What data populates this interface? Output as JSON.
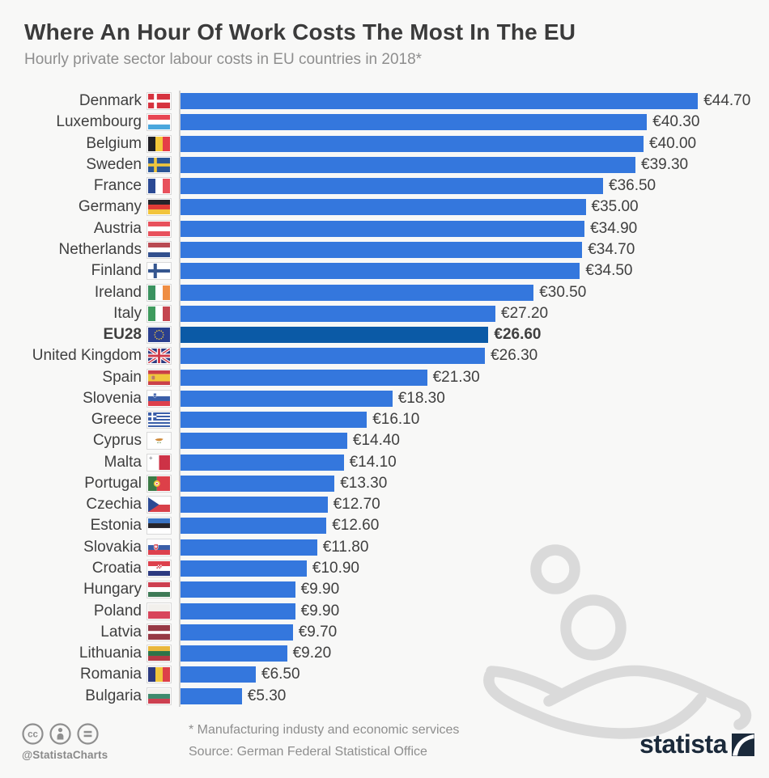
{
  "header": {
    "title": "Where An Hour Of Work Costs The Most In The EU",
    "subtitle": "Hourly private sector labour costs in EU countries in 2018*"
  },
  "chart_data": {
    "type": "bar",
    "orientation": "horizontal",
    "title": "Where An Hour Of Work Costs The Most In The EU",
    "subtitle": "Hourly private sector labour costs in EU countries in 2018*",
    "unit": "EUR per hour",
    "value_prefix": "€",
    "xlim": [
      0,
      46
    ],
    "grid": false,
    "legend": "none",
    "bar_color": "#3477dd",
    "highlight_color": "#0b5aa6",
    "highlight_category": "EU28",
    "categories": [
      "Denmark",
      "Luxembourg",
      "Belgium",
      "Sweden",
      "France",
      "Germany",
      "Austria",
      "Netherlands",
      "Finland",
      "Ireland",
      "Italy",
      "EU28",
      "United Kingdom",
      "Spain",
      "Slovenia",
      "Greece",
      "Cyprus",
      "Malta",
      "Portugal",
      "Czechia",
      "Estonia",
      "Slovakia",
      "Croatia",
      "Hungary",
      "Poland",
      "Latvia",
      "Lithuania",
      "Romania",
      "Bulgaria"
    ],
    "values": [
      44.7,
      40.3,
      40.0,
      39.3,
      36.5,
      35.0,
      34.9,
      34.7,
      34.5,
      30.5,
      27.2,
      26.6,
      26.3,
      21.3,
      18.3,
      16.1,
      14.4,
      14.1,
      13.3,
      12.7,
      12.6,
      11.8,
      10.9,
      9.9,
      9.9,
      9.7,
      9.2,
      6.5,
      5.3
    ],
    "value_labels": [
      "€44.70",
      "€40.30",
      "€40.00",
      "€39.30",
      "€36.50",
      "€35.00",
      "€34.90",
      "€34.70",
      "€34.50",
      "€30.50",
      "€27.20",
      "€26.60",
      "€26.30",
      "€21.30",
      "€18.30",
      "€16.10",
      "€14.40",
      "€14.10",
      "€13.30",
      "€12.70",
      "€12.60",
      "€11.80",
      "€10.90",
      "€9.90",
      "€9.90",
      "€9.70",
      "€9.20",
      "€6.50",
      "€5.30"
    ],
    "flag_icons": [
      "flag-denmark-icon",
      "flag-luxembourg-icon",
      "flag-belgium-icon",
      "flag-sweden-icon",
      "flag-france-icon",
      "flag-germany-icon",
      "flag-austria-icon",
      "flag-netherlands-icon",
      "flag-finland-icon",
      "flag-ireland-icon",
      "flag-italy-icon",
      "flag-eu-icon",
      "flag-united-kingdom-icon",
      "flag-spain-icon",
      "flag-slovenia-icon",
      "flag-greece-icon",
      "flag-cyprus-icon",
      "flag-malta-icon",
      "flag-portugal-icon",
      "flag-czechia-icon",
      "flag-estonia-icon",
      "flag-slovakia-icon",
      "flag-croatia-icon",
      "flag-hungary-icon",
      "flag-poland-icon",
      "flag-latvia-icon",
      "flag-lithuania-icon",
      "flag-romania-icon",
      "flag-bulgaria-icon"
    ]
  },
  "watermark": {
    "icon": "hand-giving-person-icon",
    "color": "#dadada"
  },
  "footer": {
    "cc_icons": [
      "cc-icon",
      "attribution-person-icon",
      "equals-icon"
    ],
    "handle": "@StatistaCharts",
    "footnote": "* Manufacturing industy and economic services",
    "source": "Source: German Federal Statistical Office",
    "brand": "statista"
  }
}
